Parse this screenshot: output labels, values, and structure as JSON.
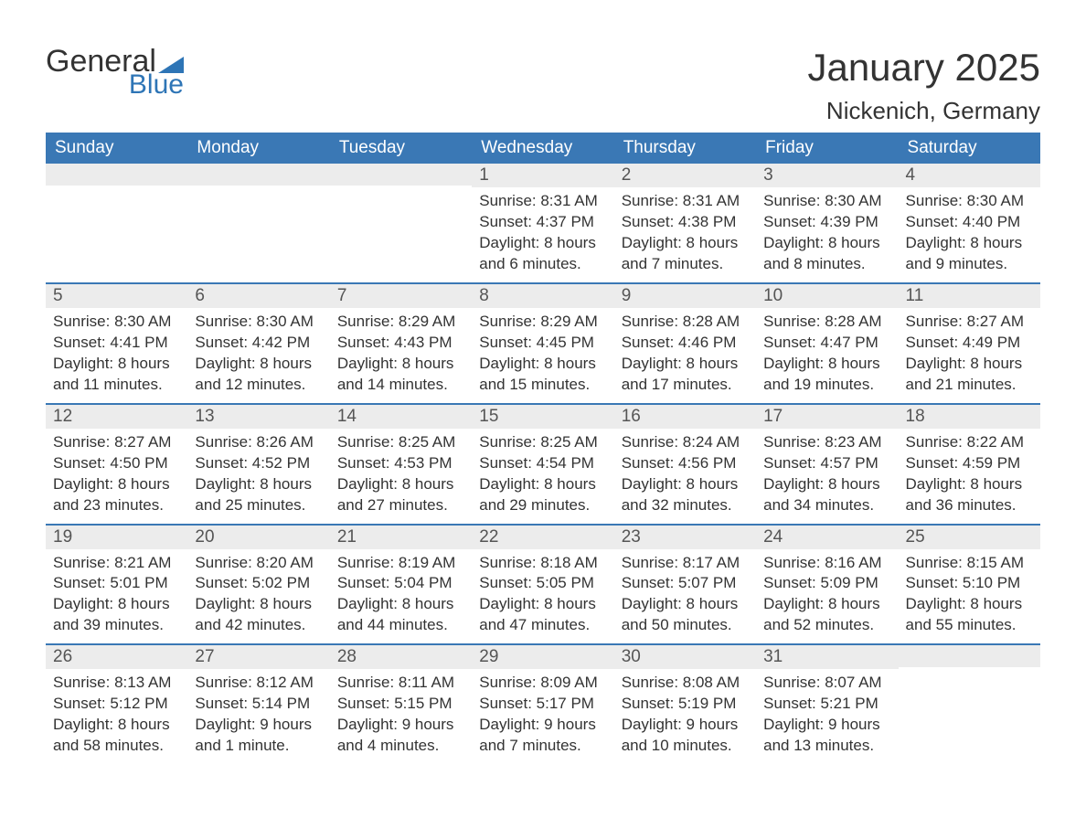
{
  "logo": {
    "line1": "General",
    "line2": "Blue"
  },
  "title": "January 2025",
  "location": "Nickenich, Germany",
  "colors": {
    "header_bg": "#3a78b5",
    "header_text": "#ffffff",
    "daynum_bg": "#ececec",
    "row_border": "#3a78b5",
    "text": "#333333",
    "logo_blue": "#2e75b6"
  },
  "typography": {
    "title_fontsize": 42,
    "location_fontsize": 26,
    "header_fontsize": 19,
    "daynum_fontsize": 19,
    "body_fontsize": 17
  },
  "weekdays": [
    "Sunday",
    "Monday",
    "Tuesday",
    "Wednesday",
    "Thursday",
    "Friday",
    "Saturday"
  ],
  "weeks": [
    [
      {
        "day": "",
        "sunrise": "",
        "sunset": "",
        "daylight1": "",
        "daylight2": ""
      },
      {
        "day": "",
        "sunrise": "",
        "sunset": "",
        "daylight1": "",
        "daylight2": ""
      },
      {
        "day": "",
        "sunrise": "",
        "sunset": "",
        "daylight1": "",
        "daylight2": ""
      },
      {
        "day": "1",
        "sunrise": "Sunrise: 8:31 AM",
        "sunset": "Sunset: 4:37 PM",
        "daylight1": "Daylight: 8 hours",
        "daylight2": "and 6 minutes."
      },
      {
        "day": "2",
        "sunrise": "Sunrise: 8:31 AM",
        "sunset": "Sunset: 4:38 PM",
        "daylight1": "Daylight: 8 hours",
        "daylight2": "and 7 minutes."
      },
      {
        "day": "3",
        "sunrise": "Sunrise: 8:30 AM",
        "sunset": "Sunset: 4:39 PM",
        "daylight1": "Daylight: 8 hours",
        "daylight2": "and 8 minutes."
      },
      {
        "day": "4",
        "sunrise": "Sunrise: 8:30 AM",
        "sunset": "Sunset: 4:40 PM",
        "daylight1": "Daylight: 8 hours",
        "daylight2": "and 9 minutes."
      }
    ],
    [
      {
        "day": "5",
        "sunrise": "Sunrise: 8:30 AM",
        "sunset": "Sunset: 4:41 PM",
        "daylight1": "Daylight: 8 hours",
        "daylight2": "and 11 minutes."
      },
      {
        "day": "6",
        "sunrise": "Sunrise: 8:30 AM",
        "sunset": "Sunset: 4:42 PM",
        "daylight1": "Daylight: 8 hours",
        "daylight2": "and 12 minutes."
      },
      {
        "day": "7",
        "sunrise": "Sunrise: 8:29 AM",
        "sunset": "Sunset: 4:43 PM",
        "daylight1": "Daylight: 8 hours",
        "daylight2": "and 14 minutes."
      },
      {
        "day": "8",
        "sunrise": "Sunrise: 8:29 AM",
        "sunset": "Sunset: 4:45 PM",
        "daylight1": "Daylight: 8 hours",
        "daylight2": "and 15 minutes."
      },
      {
        "day": "9",
        "sunrise": "Sunrise: 8:28 AM",
        "sunset": "Sunset: 4:46 PM",
        "daylight1": "Daylight: 8 hours",
        "daylight2": "and 17 minutes."
      },
      {
        "day": "10",
        "sunrise": "Sunrise: 8:28 AM",
        "sunset": "Sunset: 4:47 PM",
        "daylight1": "Daylight: 8 hours",
        "daylight2": "and 19 minutes."
      },
      {
        "day": "11",
        "sunrise": "Sunrise: 8:27 AM",
        "sunset": "Sunset: 4:49 PM",
        "daylight1": "Daylight: 8 hours",
        "daylight2": "and 21 minutes."
      }
    ],
    [
      {
        "day": "12",
        "sunrise": "Sunrise: 8:27 AM",
        "sunset": "Sunset: 4:50 PM",
        "daylight1": "Daylight: 8 hours",
        "daylight2": "and 23 minutes."
      },
      {
        "day": "13",
        "sunrise": "Sunrise: 8:26 AM",
        "sunset": "Sunset: 4:52 PM",
        "daylight1": "Daylight: 8 hours",
        "daylight2": "and 25 minutes."
      },
      {
        "day": "14",
        "sunrise": "Sunrise: 8:25 AM",
        "sunset": "Sunset: 4:53 PM",
        "daylight1": "Daylight: 8 hours",
        "daylight2": "and 27 minutes."
      },
      {
        "day": "15",
        "sunrise": "Sunrise: 8:25 AM",
        "sunset": "Sunset: 4:54 PM",
        "daylight1": "Daylight: 8 hours",
        "daylight2": "and 29 minutes."
      },
      {
        "day": "16",
        "sunrise": "Sunrise: 8:24 AM",
        "sunset": "Sunset: 4:56 PM",
        "daylight1": "Daylight: 8 hours",
        "daylight2": "and 32 minutes."
      },
      {
        "day": "17",
        "sunrise": "Sunrise: 8:23 AM",
        "sunset": "Sunset: 4:57 PM",
        "daylight1": "Daylight: 8 hours",
        "daylight2": "and 34 minutes."
      },
      {
        "day": "18",
        "sunrise": "Sunrise: 8:22 AM",
        "sunset": "Sunset: 4:59 PM",
        "daylight1": "Daylight: 8 hours",
        "daylight2": "and 36 minutes."
      }
    ],
    [
      {
        "day": "19",
        "sunrise": "Sunrise: 8:21 AM",
        "sunset": "Sunset: 5:01 PM",
        "daylight1": "Daylight: 8 hours",
        "daylight2": "and 39 minutes."
      },
      {
        "day": "20",
        "sunrise": "Sunrise: 8:20 AM",
        "sunset": "Sunset: 5:02 PM",
        "daylight1": "Daylight: 8 hours",
        "daylight2": "and 42 minutes."
      },
      {
        "day": "21",
        "sunrise": "Sunrise: 8:19 AM",
        "sunset": "Sunset: 5:04 PM",
        "daylight1": "Daylight: 8 hours",
        "daylight2": "and 44 minutes."
      },
      {
        "day": "22",
        "sunrise": "Sunrise: 8:18 AM",
        "sunset": "Sunset: 5:05 PM",
        "daylight1": "Daylight: 8 hours",
        "daylight2": "and 47 minutes."
      },
      {
        "day": "23",
        "sunrise": "Sunrise: 8:17 AM",
        "sunset": "Sunset: 5:07 PM",
        "daylight1": "Daylight: 8 hours",
        "daylight2": "and 50 minutes."
      },
      {
        "day": "24",
        "sunrise": "Sunrise: 8:16 AM",
        "sunset": "Sunset: 5:09 PM",
        "daylight1": "Daylight: 8 hours",
        "daylight2": "and 52 minutes."
      },
      {
        "day": "25",
        "sunrise": "Sunrise: 8:15 AM",
        "sunset": "Sunset: 5:10 PM",
        "daylight1": "Daylight: 8 hours",
        "daylight2": "and 55 minutes."
      }
    ],
    [
      {
        "day": "26",
        "sunrise": "Sunrise: 8:13 AM",
        "sunset": "Sunset: 5:12 PM",
        "daylight1": "Daylight: 8 hours",
        "daylight2": "and 58 minutes."
      },
      {
        "day": "27",
        "sunrise": "Sunrise: 8:12 AM",
        "sunset": "Sunset: 5:14 PM",
        "daylight1": "Daylight: 9 hours",
        "daylight2": "and 1 minute."
      },
      {
        "day": "28",
        "sunrise": "Sunrise: 8:11 AM",
        "sunset": "Sunset: 5:15 PM",
        "daylight1": "Daylight: 9 hours",
        "daylight2": "and 4 minutes."
      },
      {
        "day": "29",
        "sunrise": "Sunrise: 8:09 AM",
        "sunset": "Sunset: 5:17 PM",
        "daylight1": "Daylight: 9 hours",
        "daylight2": "and 7 minutes."
      },
      {
        "day": "30",
        "sunrise": "Sunrise: 8:08 AM",
        "sunset": "Sunset: 5:19 PM",
        "daylight1": "Daylight: 9 hours",
        "daylight2": "and 10 minutes."
      },
      {
        "day": "31",
        "sunrise": "Sunrise: 8:07 AM",
        "sunset": "Sunset: 5:21 PM",
        "daylight1": "Daylight: 9 hours",
        "daylight2": "and 13 minutes."
      },
      {
        "day": "",
        "sunrise": "",
        "sunset": "",
        "daylight1": "",
        "daylight2": ""
      }
    ]
  ]
}
